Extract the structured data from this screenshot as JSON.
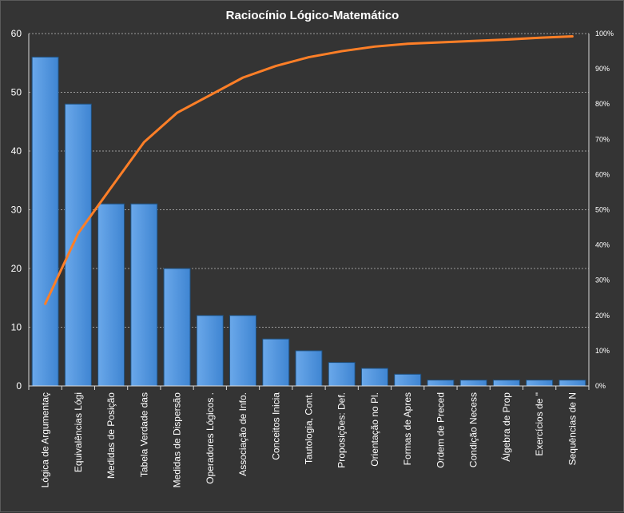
{
  "chart_data": {
    "type": "bar",
    "title": "Raciocínio  Lógico-Matemático",
    "categories": [
      "Lógica de Argumentaç",
      "Equivalências Lógi",
      "Medidas de Posição",
      "Tabela Verdade das",
      "Medidas de Dispersão",
      "Operadores Lógicos .",
      "Associação de Info.",
      "Conceitos Inicia",
      "Tautologia, Cont.",
      "Proposições: Def.",
      "Orientação no Pl.",
      "Formas  de Apres",
      "Ordem de Preced",
      "Condição Necess",
      "Álgebra de Prop",
      "Exercícios de \"",
      "Sequências de N"
    ],
    "series": [
      {
        "type": "bar",
        "values": [
          56,
          48,
          31,
          31,
          20,
          12,
          12,
          8,
          6,
          4,
          3,
          2,
          1,
          1,
          1,
          1,
          1
        ],
        "color": "#4a90d9"
      },
      {
        "type": "line",
        "axis": "right",
        "values": [
          23.3,
          43.3,
          56.3,
          69.2,
          77.5,
          82.5,
          87.5,
          90.8,
          93.3,
          95.0,
          96.3,
          97.1,
          97.5,
          97.9,
          98.3,
          98.8,
          99.2
        ],
        "color": "#ff7f27"
      }
    ],
    "ylim": [
      0,
      60
    ],
    "y_ticks": [
      0,
      10,
      20,
      30,
      40,
      50,
      60
    ],
    "y2lim": [
      0,
      100
    ],
    "y2_ticks": [
      "0%",
      "10%",
      "20%",
      "30%",
      "40%",
      "50%",
      "60%",
      "70%",
      "80%",
      "90%",
      "100%"
    ],
    "grid": true,
    "legend": "none",
    "background": "#343434"
  }
}
